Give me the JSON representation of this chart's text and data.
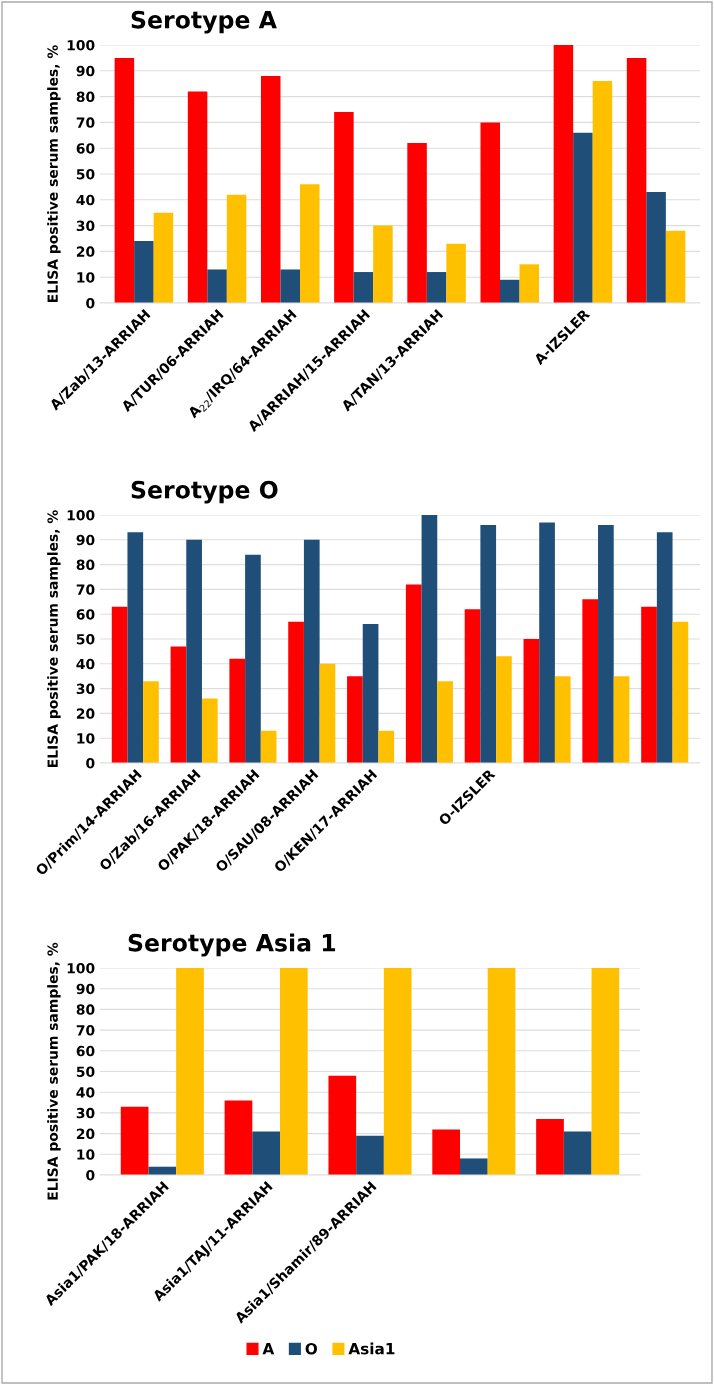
{
  "chart_data": [
    {
      "type": "bar",
      "title": "Serotype A",
      "ylabel": "ELISA positive serum samples, %",
      "categories": [
        "A/Zab/13-ARRIAH",
        "A/TUR/06-ARRIAH",
        "A$_{22}$/IRQ/64-ARRIAH",
        "A/ARRIAH/15-ARRIAH",
        "A/TAN/13-ARRIAH",
        null,
        "A-IZSLER",
        null
      ],
      "series": [
        {
          "name": "A",
          "color": "#ff0000",
          "values": [
            95,
            82,
            88,
            74,
            62,
            70,
            100,
            95
          ]
        },
        {
          "name": "O",
          "color": "#1f4e79",
          "values": [
            24,
            13,
            13,
            12,
            12,
            9,
            66,
            43
          ]
        },
        {
          "name": "Asia1",
          "color": "#ffc000",
          "values": [
            35,
            42,
            46,
            30,
            23,
            15,
            86,
            28
          ]
        }
      ],
      "ylim": [
        0,
        100
      ],
      "yticks": [
        0,
        10,
        20,
        30,
        40,
        50,
        60,
        70,
        80,
        90,
        100
      ],
      "grid": "y",
      "legend": "bottom"
    },
    {
      "type": "bar",
      "title": "Serotype O",
      "ylabel": "ELISA positive serum samples, %",
      "categories": [
        "O/Prim/14-ARRIAH",
        "O/Zab/16-ARRIAH",
        "O/PAK/18-ARRIAH",
        "O/SAU/08-ARRIAH",
        "O/KEN/17-ARRIAH",
        null,
        "O-IZSLER",
        null,
        null,
        null
      ],
      "series": [
        {
          "color": "#ff0000",
          "values": [
            63,
            47,
            42,
            57,
            35,
            72,
            62,
            50,
            66,
            63
          ]
        },
        {
          "color": "#1f4e79",
          "values": [
            93,
            90,
            84,
            90,
            56,
            100,
            96,
            97,
            96,
            93
          ]
        },
        {
          "color": "#ffc000",
          "values": [
            33,
            26,
            13,
            40,
            13,
            33,
            43,
            35,
            35,
            57
          ]
        }
      ],
      "ylim": [
        0,
        100
      ],
      "yticks": [
        0,
        10,
        20,
        30,
        40,
        50,
        60,
        70,
        80,
        90,
        100
      ],
      "grid": "y"
    },
    {
      "type": "bar",
      "title": "Serotype Asia 1",
      "ylabel": "ELISA positive serum samples, %",
      "categories": [
        "Asia1/PAK/18-ARRIAH",
        "Asia1/TAJ/11-ARRIAH",
        "Asia1/Shamir/89-ARRIAH",
        null,
        null
      ],
      "series": [
        {
          "color": "#ff0000",
          "values": [
            33,
            36,
            48,
            22,
            27
          ]
        },
        {
          "color": "#1f4e79",
          "values": [
            4,
            21,
            19,
            8,
            21
          ]
        },
        {
          "color": "#ffc000",
          "values": [
            100,
            100,
            100,
            100,
            100
          ]
        }
      ],
      "ylim": [
        0,
        100
      ],
      "yticks": [
        0,
        10,
        20,
        30,
        40,
        50,
        60,
        70,
        80,
        90,
        100
      ],
      "grid": "y"
    }
  ]
}
